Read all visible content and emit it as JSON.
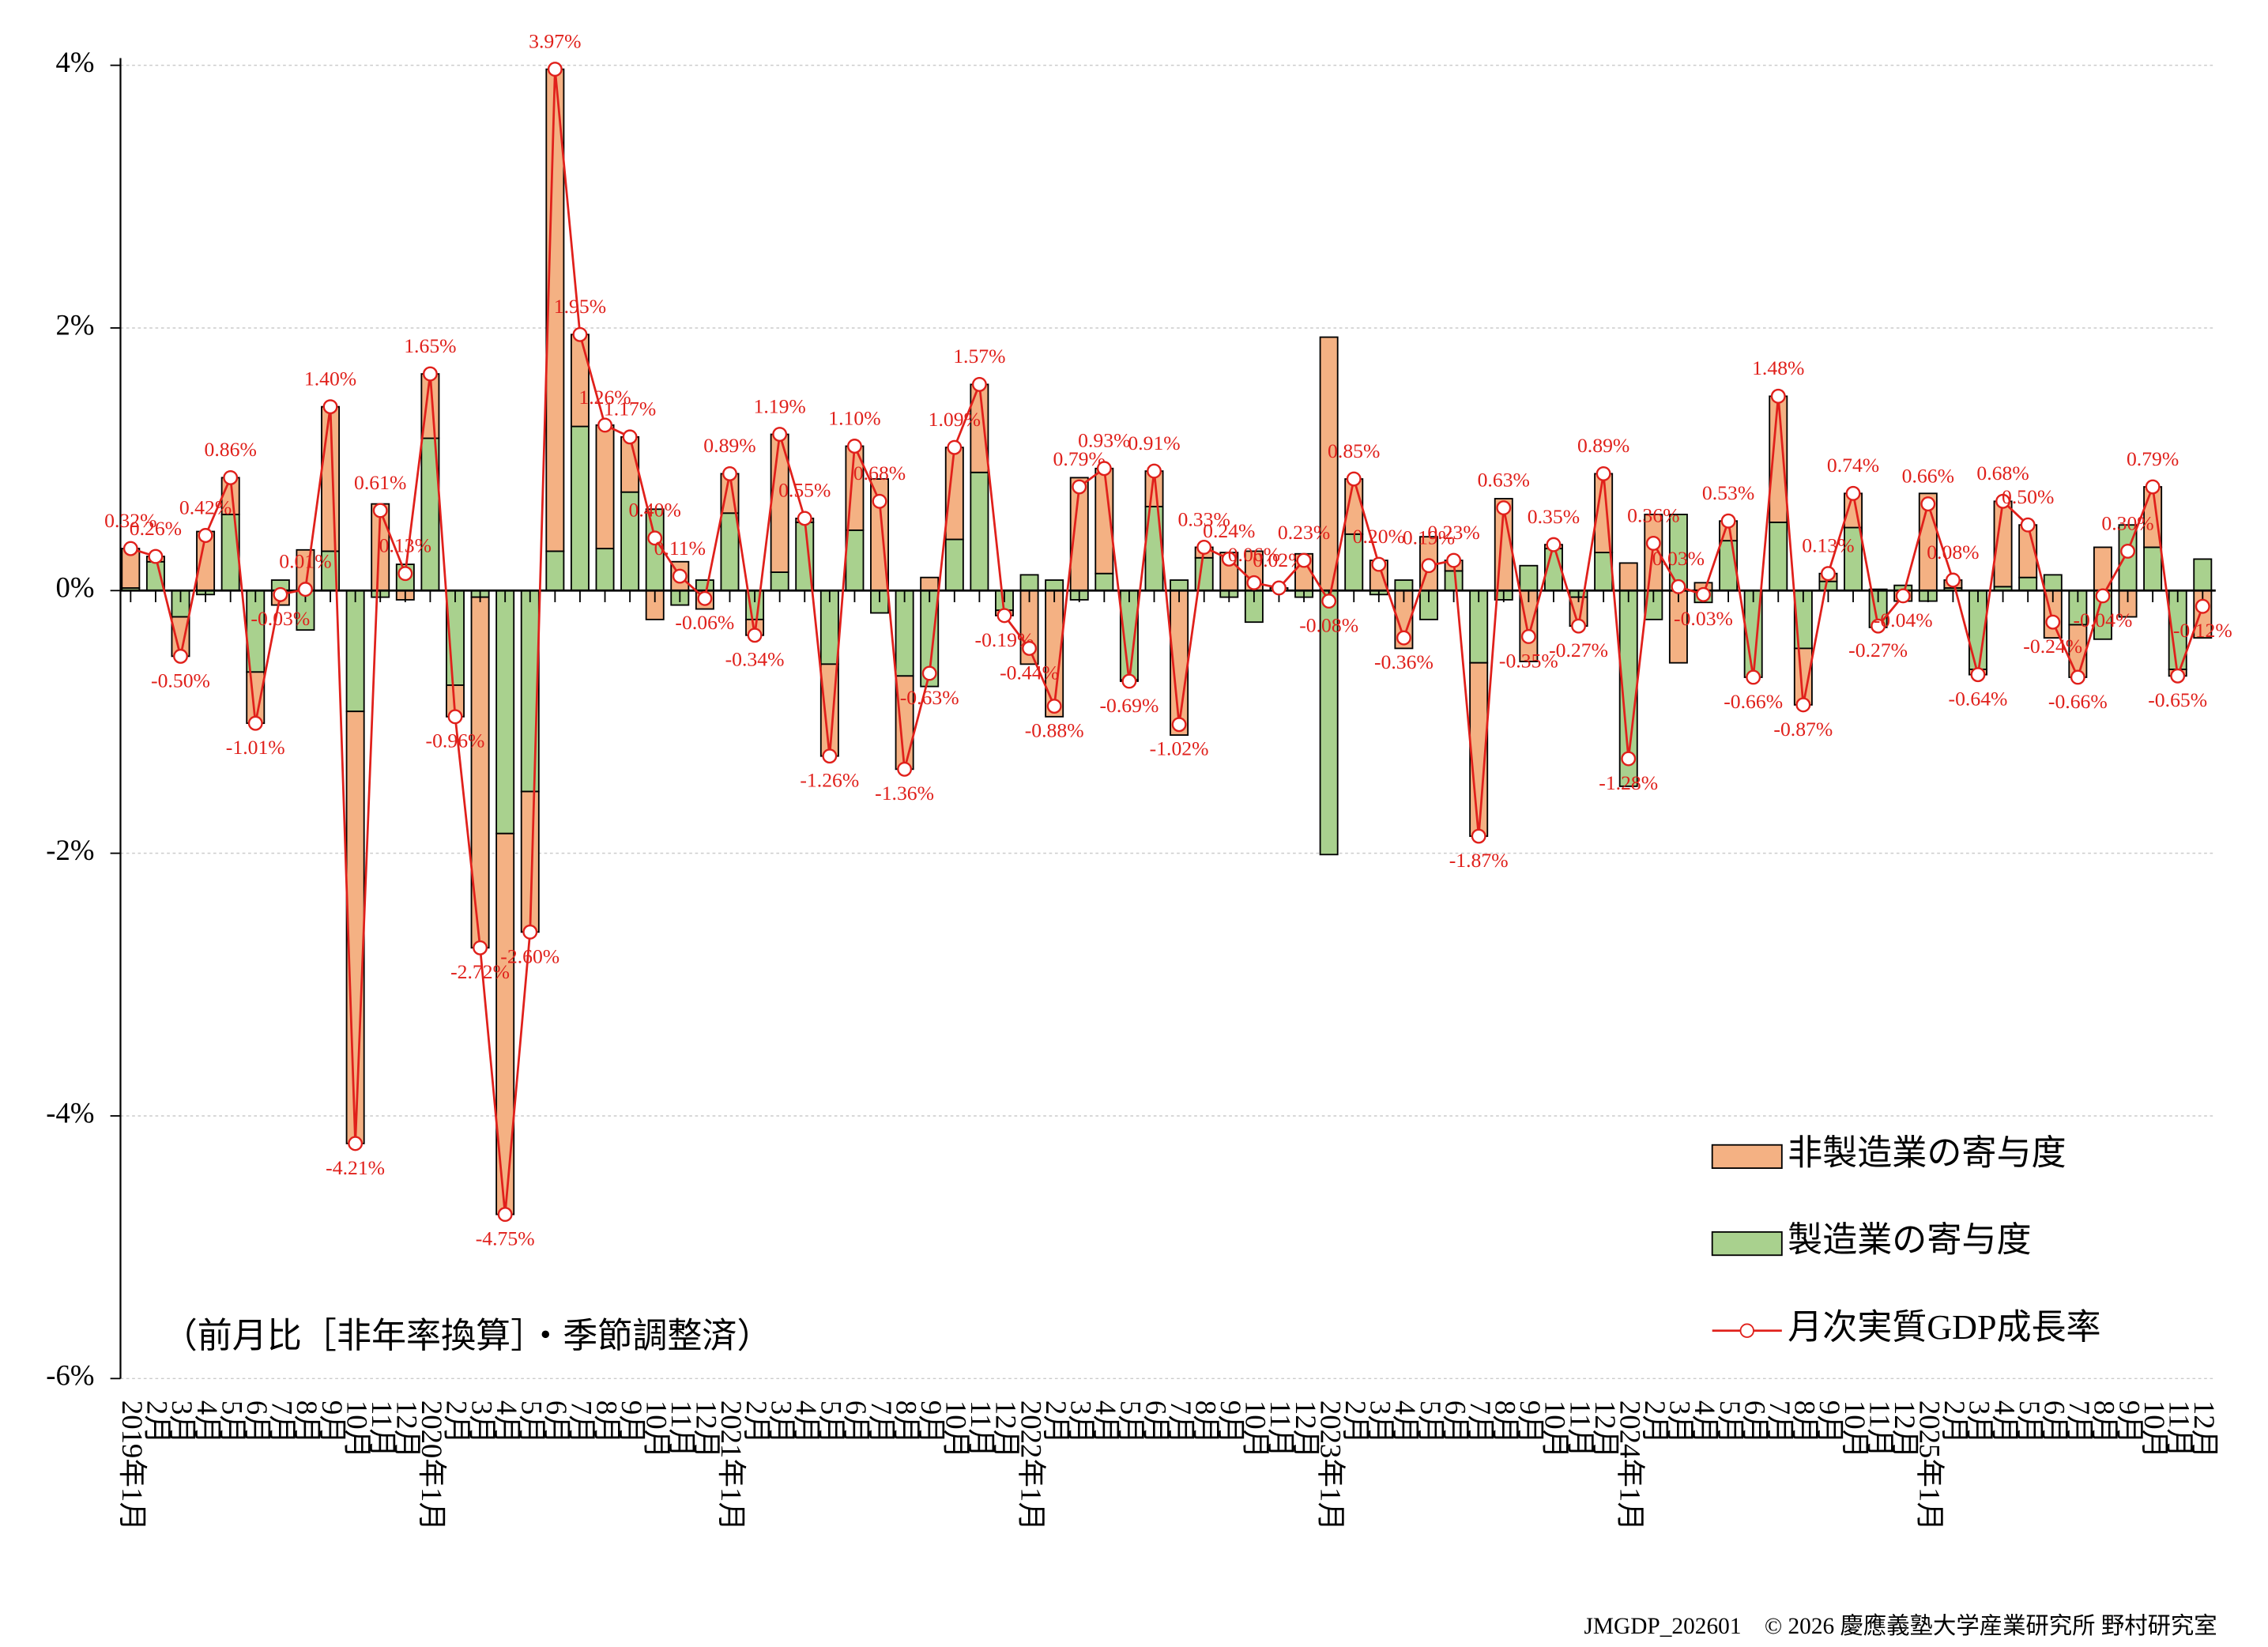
{
  "chart_data": {
    "type": "bar",
    "note": "（前月比［非年率換算］・季節調整済）",
    "footer": "JMGDP_202601　© 2026 慶應義塾大学産業研究所 野村研究室",
    "categories": [
      "2019年1月",
      "2月",
      "3月",
      "4月",
      "5月",
      "6月",
      "7月",
      "8月",
      "9月",
      "10月",
      "11月",
      "12月",
      "2020年1月",
      "2月",
      "3月",
      "4月",
      "5月",
      "6月",
      "7月",
      "8月",
      "9月",
      "10月",
      "11月",
      "12月",
      "2021年1月",
      "2月",
      "3月",
      "4月",
      "5月",
      "6月",
      "7月",
      "8月",
      "9月",
      "10月",
      "11月",
      "12月",
      "2022年1月",
      "2月",
      "3月",
      "4月",
      "5月",
      "6月",
      "7月",
      "8月",
      "9月",
      "10月",
      "11月",
      "12月",
      "2023年1月",
      "2月",
      "3月",
      "4月",
      "5月",
      "6月",
      "7月",
      "8月",
      "9月",
      "10月",
      "11月",
      "12月",
      "2024年1月",
      "2月",
      "3月",
      "4月",
      "5月",
      "6月",
      "7月",
      "8月",
      "9月",
      "10月",
      "11月",
      "12月",
      "2025年1月",
      "2月",
      "3月",
      "4月",
      "5月",
      "6月",
      "7月",
      "8月",
      "9月",
      "10月",
      "11月",
      "12月"
    ],
    "series": [
      {
        "name": "非製造業の寄与度",
        "color": "#f4b183",
        "stack_order": 1,
        "values": [
          0.3,
          0.04,
          -0.3,
          0.45,
          0.28,
          -0.39,
          -0.11,
          0.31,
          1.1,
          -3.29,
          0.66,
          -0.07,
          0.49,
          -0.24,
          -2.67,
          -2.9,
          -1.07,
          3.67,
          0.7,
          0.94,
          0.42,
          -0.22,
          0.22,
          -0.14,
          0.3,
          -0.12,
          1.05,
          0.03,
          -0.7,
          0.64,
          0.85,
          -0.71,
          0.1,
          0.7,
          0.67,
          -0.04,
          -0.56,
          -0.96,
          0.86,
          0.8,
          -0.01,
          0.27,
          -1.1,
          0.08,
          0.29,
          0.3,
          0.0,
          0.28,
          1.93,
          0.42,
          0.23,
          -0.44,
          0.41,
          0.08,
          -1.32,
          0.7,
          -0.54,
          0.03,
          -0.22,
          0.6,
          0.21,
          0.58,
          -0.55,
          0.06,
          0.15,
          0.0,
          0.96,
          -0.43,
          0.06,
          0.26,
          0.01,
          -0.08,
          0.74,
          0.06,
          -0.04,
          0.65,
          0.4,
          -0.36,
          -0.4,
          0.33,
          -0.2,
          0.46,
          -0.05,
          -0.36
        ]
      },
      {
        "name": "製造業の寄与度",
        "color": "#a9d18e",
        "stack_order": 0,
        "values": [
          0.02,
          0.22,
          -0.2,
          -0.03,
          0.58,
          -0.62,
          0.08,
          -0.3,
          0.3,
          -0.92,
          -0.05,
          0.2,
          1.16,
          -0.72,
          -0.05,
          -1.85,
          -1.53,
          0.3,
          1.25,
          0.32,
          0.75,
          0.62,
          -0.11,
          0.08,
          0.59,
          -0.22,
          0.14,
          0.52,
          -0.56,
          0.46,
          -0.17,
          -0.65,
          -0.73,
          0.39,
          0.9,
          -0.15,
          0.12,
          0.08,
          -0.07,
          0.13,
          -0.68,
          0.64,
          0.08,
          0.25,
          -0.05,
          -0.24,
          0.02,
          -0.05,
          -2.01,
          0.43,
          -0.03,
          0.08,
          -0.22,
          0.15,
          -0.55,
          -0.07,
          0.19,
          0.32,
          -0.05,
          0.29,
          -1.49,
          -0.22,
          0.58,
          -0.09,
          0.38,
          -0.66,
          0.52,
          -0.44,
          0.07,
          0.48,
          -0.28,
          0.04,
          -0.08,
          0.02,
          -0.6,
          0.03,
          0.1,
          0.12,
          -0.26,
          -0.37,
          0.5,
          0.33,
          -0.6,
          0.24
        ]
      },
      {
        "name": "月次実質GDP成長率",
        "type": "line",
        "color": "#e0201b",
        "marker": "circle",
        "values": [
          0.32,
          0.26,
          -0.5,
          0.42,
          0.86,
          -1.01,
          -0.03,
          0.01,
          1.4,
          -4.21,
          0.61,
          0.13,
          1.65,
          -0.96,
          -2.72,
          -4.75,
          -2.6,
          3.97,
          1.95,
          1.26,
          1.17,
          0.4,
          0.11,
          -0.06,
          0.89,
          -0.34,
          1.19,
          0.55,
          -1.26,
          1.1,
          0.68,
          -1.36,
          -0.63,
          1.09,
          1.57,
          -0.19,
          -0.44,
          -0.88,
          0.79,
          0.93,
          -0.69,
          0.91,
          -1.02,
          0.33,
          0.24,
          0.06,
          0.02,
          0.23,
          -0.08,
          0.85,
          0.2,
          -0.36,
          0.19,
          0.23,
          -1.87,
          0.63,
          -0.35,
          0.35,
          -0.27,
          0.89,
          -1.28,
          0.36,
          0.03,
          -0.03,
          0.53,
          -0.66,
          1.48,
          -0.87,
          0.13,
          0.74,
          -0.27,
          -0.04,
          0.66,
          0.08,
          -0.64,
          0.68,
          0.5,
          -0.24,
          -0.66,
          -0.04,
          0.3,
          0.79,
          -0.65,
          -0.12
        ],
        "value_labels": [
          "0.32%",
          "0.26%",
          "-0.50%",
          "0.42%",
          "0.86%",
          "-1.01%",
          "-0.03%",
          "0.01%",
          "1.40%",
          "-4.21%",
          "0.61%",
          "0.13%",
          "1.65%",
          "-0.96%",
          "-2.72%",
          "-4.75%",
          "-2.60%",
          "3.97%",
          "1.95%",
          "1.26%",
          "1.17%",
          "0.40%",
          "0.11%",
          "-0.06%",
          "0.89%",
          "-0.34%",
          "1.19%",
          "0.55%",
          "-1.26%",
          "1.10%",
          "0.68%",
          "-1.36%",
          "-0.63%",
          "1.09%",
          "1.57%",
          "-0.19%",
          "-0.44%",
          "-0.88%",
          "0.79%",
          "0.93%",
          "-0.69%",
          "0.91%",
          "-1.02%",
          "0.33%",
          "0.24%",
          "0.06%",
          "0.02%",
          "0.23%",
          "-0.08%",
          "0.85%",
          "0.20%",
          "-0.36%",
          "0.19%",
          "0.23%",
          "-1.87%",
          "0.63%",
          "-0.35%",
          "0.35%",
          "-0.27%",
          "0.89%",
          "-1.28%",
          "0.36%",
          "0.03%",
          "-0.03%",
          "0.53%",
          "-0.66%",
          "1.48%",
          "-0.87%",
          "0.13%",
          "0.74%",
          "-0.27%",
          "-0.04%",
          "0.66%",
          "0.08%",
          "-0.64%",
          "0.68%",
          "0.50%",
          "-0.24%",
          "-0.66%",
          "-0.04%",
          "0.30%",
          "0.79%",
          "-0.65%",
          "-0.12%"
        ]
      }
    ],
    "ylim": [
      -6,
      4
    ],
    "yticks": [
      {
        "value": -6,
        "label": "-6%"
      },
      {
        "value": -4,
        "label": "-4%"
      },
      {
        "value": -2,
        "label": "-2%"
      },
      {
        "value": 0,
        "label": "0%"
      },
      {
        "value": 2,
        "label": "2%"
      },
      {
        "value": 4,
        "label": "4%"
      }
    ],
    "grid": true,
    "legend": "lower right"
  }
}
